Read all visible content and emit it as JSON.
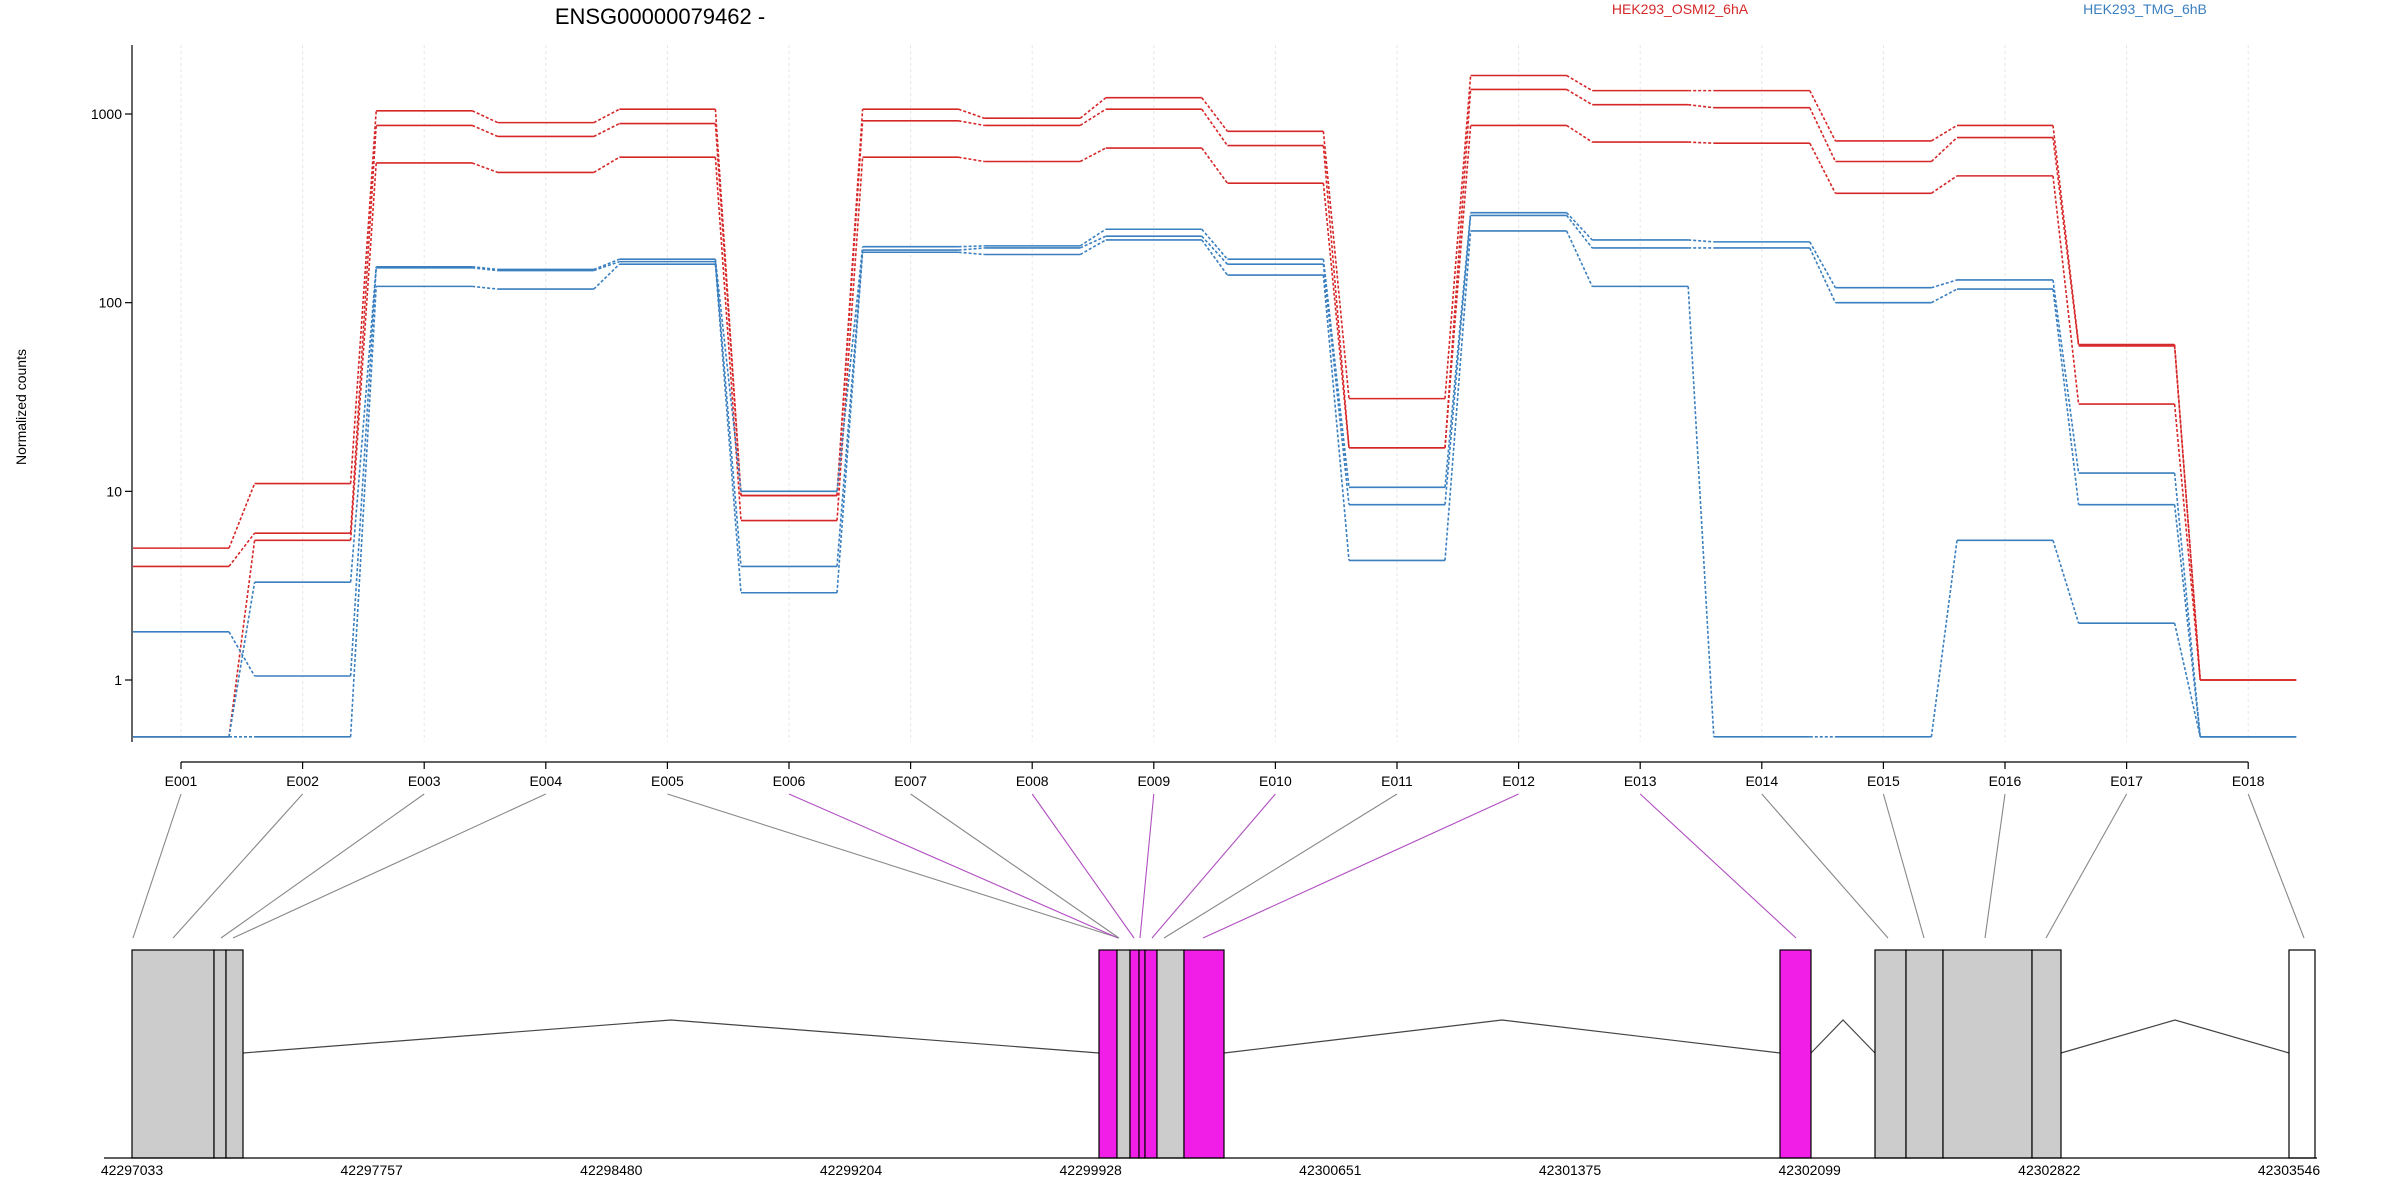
{
  "chart_data": {
    "type": "line",
    "title": "ENSG00000079462 -",
    "ylabel": "Normalized counts",
    "xlabel": "",
    "yscale": "log",
    "ylim": [
      0.5,
      2000
    ],
    "yticks": [
      1,
      10,
      100,
      1000
    ],
    "ytick_labels": [
      "1",
      "10",
      "100",
      "1000"
    ],
    "categories": [
      "E001",
      "E002",
      "E003",
      "E004",
      "E005",
      "E006",
      "E007",
      "E008",
      "E009",
      "E010",
      "E011",
      "E012",
      "E013",
      "E014",
      "E015",
      "E016",
      "E017",
      "E018"
    ],
    "groups": [
      {
        "name": "HEK293_OSMI2_6hA",
        "color": "#d62728"
      },
      {
        "name": "HEK293_TMG_6hB",
        "color": "#3a7fbf"
      }
    ],
    "series": [
      {
        "group": 0,
        "values": [
          5.0,
          11.0,
          1040,
          900,
          1060,
          9.5,
          1060,
          950,
          1220,
          810,
          31,
          1600,
          1330,
          1330,
          720,
          870,
          60,
          1.0
        ]
      },
      {
        "group": 0,
        "values": [
          4.0,
          6.0,
          870,
          760,
          890,
          9.5,
          920,
          870,
          1060,
          680,
          17,
          1350,
          1120,
          1080,
          560,
          750,
          59,
          1.0
        ]
      },
      {
        "group": 0,
        "values": [
          0.5,
          5.5,
          550,
          490,
          590,
          7.0,
          590,
          560,
          660,
          430,
          17,
          870,
          710,
          700,
          380,
          470,
          29,
          1.0
        ]
      },
      {
        "group": 1,
        "values": [
          0.5,
          3.3,
          155,
          150,
          170,
          10,
          198,
          200,
          245,
          170,
          10.5,
          300,
          215,
          210,
          120,
          132,
          12.5,
          0.5
        ]
      },
      {
        "group": 1,
        "values": [
          1.8,
          1.05,
          153,
          148,
          165,
          4.0,
          190,
          195,
          225,
          160,
          8.5,
          290,
          195,
          195,
          100,
          118,
          8.5,
          0.5
        ]
      },
      {
        "group": 1,
        "values": [
          0.5,
          0.5,
          122,
          118,
          160,
          2.9,
          185,
          180,
          215,
          140,
          4.3,
          240,
          122,
          0.5,
          0.5,
          5.5,
          2.0,
          0.5
        ]
      }
    ],
    "gene_model": {
      "coordinate_ticks": [
        "42297033",
        "42297757",
        "42298480",
        "42299204",
        "42299928",
        "42300651",
        "42301375",
        "42302099",
        "42302822",
        "42303546"
      ],
      "exon_bin_colors": [
        "#cccccc",
        "#cccccc",
        "#cccccc",
        "#cccccc",
        "#cccccc",
        "#f01ee6",
        "#cccccc",
        "#f01ee6",
        "#f01ee6",
        "#f01ee6",
        "#cccccc",
        "#f01ee6",
        "#f01ee6",
        "#cccccc",
        "#cccccc",
        "#cccccc",
        "#cccccc",
        "#ffffff"
      ],
      "highlight_color": "#f01ee6",
      "exon_fill": "#cccccc"
    }
  }
}
